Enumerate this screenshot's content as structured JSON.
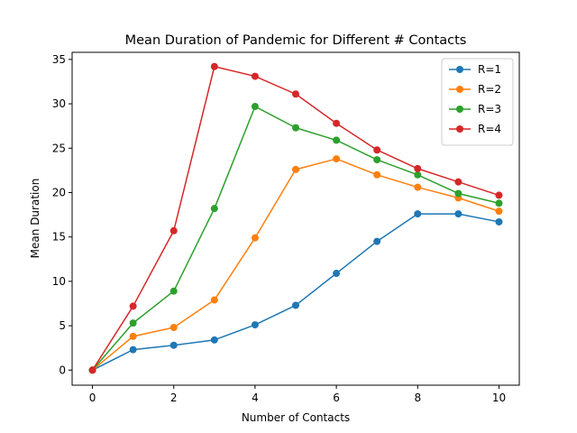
{
  "chart_data": {
    "type": "line",
    "title": "Mean Duration of Pandemic for Different # Contacts",
    "xlabel": "Number of Contacts",
    "ylabel": "Mean Duration",
    "xlim": [
      -0.5,
      10.5
    ],
    "ylim": [
      -1.7,
      35.8
    ],
    "xticks": [
      0,
      2,
      4,
      6,
      8,
      10
    ],
    "yticks": [
      0,
      5,
      10,
      15,
      20,
      25,
      30,
      35
    ],
    "grid": false,
    "legend_position": "top-right",
    "x": [
      0,
      1,
      2,
      3,
      4,
      5,
      6,
      7,
      8,
      9,
      10
    ],
    "series": [
      {
        "name": "R=1",
        "color": "#1f77b4",
        "values": [
          0,
          2.3,
          2.8,
          3.4,
          5.1,
          7.3,
          10.9,
          14.5,
          17.6,
          17.6,
          16.7
        ]
      },
      {
        "name": "R=2",
        "color": "#ff7f0e",
        "values": [
          0,
          3.8,
          4.8,
          7.9,
          14.9,
          22.6,
          23.8,
          22.0,
          20.6,
          19.4,
          17.9
        ]
      },
      {
        "name": "R=3",
        "color": "#2ca02c",
        "values": [
          0,
          5.3,
          8.9,
          18.2,
          29.7,
          27.3,
          25.9,
          23.7,
          22.0,
          19.9,
          18.8
        ]
      },
      {
        "name": "R=4",
        "color": "#d62728",
        "values": [
          0,
          7.2,
          15.7,
          34.2,
          33.1,
          31.1,
          27.8,
          24.8,
          22.7,
          21.2,
          19.7
        ]
      }
    ]
  }
}
